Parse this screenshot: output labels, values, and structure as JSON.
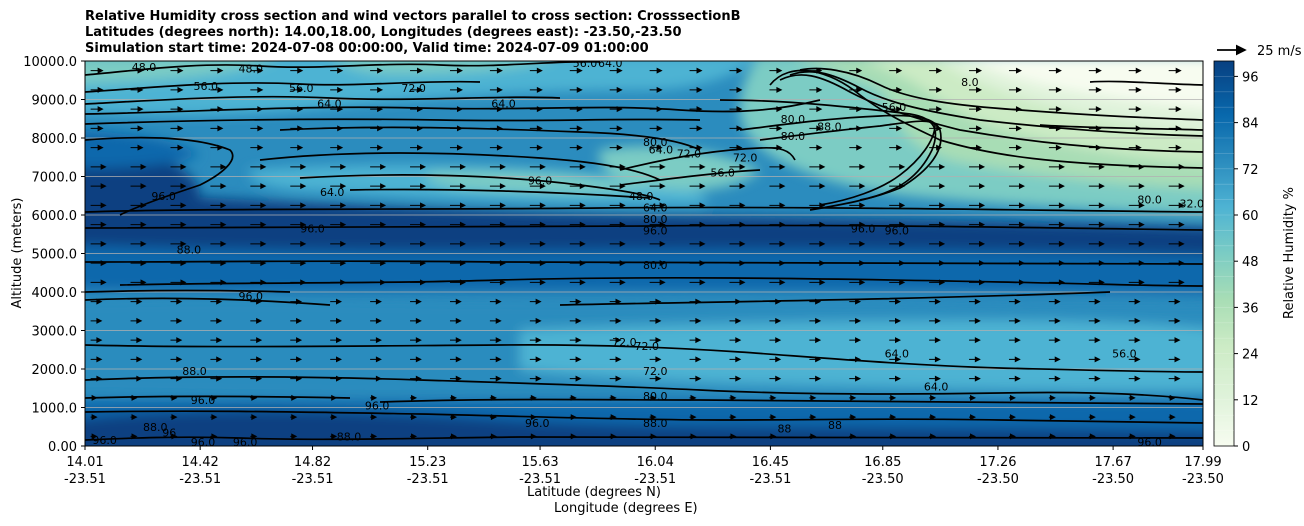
{
  "chart_data": {
    "type": "contour",
    "title_lines": [
      "Relative Humidity cross section and wind vectors parallel to cross section: CrosssectionB",
      "Latitudes (degrees north): 14.00,18.00, Longitudes (degrees east): -23.50,-23.50",
      "Simulation start time: 2024-07-08 00:00:00, Valid time: 2024-07-09 01:00:00"
    ],
    "xlabel_lat": "Latitude (degrees N)",
    "xlabel_lon": "Longitude (degrees E)",
    "ylabel": "Altitude (meters)",
    "x_ticks": [
      {
        "lat": "14.01",
        "lon": "-23.51"
      },
      {
        "lat": "14.42",
        "lon": "-23.51"
      },
      {
        "lat": "14.82",
        "lon": "-23.51"
      },
      {
        "lat": "15.23",
        "lon": "-23.51"
      },
      {
        "lat": "15.63",
        "lon": "-23.51"
      },
      {
        "lat": "16.04",
        "lon": "-23.51"
      },
      {
        "lat": "16.45",
        "lon": "-23.51"
      },
      {
        "lat": "16.85",
        "lon": "-23.50"
      },
      {
        "lat": "17.26",
        "lon": "-23.50"
      },
      {
        "lat": "17.67",
        "lon": "-23.50"
      },
      {
        "lat": "17.99",
        "lon": "-23.50"
      }
    ],
    "xlim": [
      14.01,
      17.99
    ],
    "y_ticks": [
      "0.00",
      "1000.0",
      "2000.0",
      "3000.0",
      "4000.0",
      "5000.0",
      "6000.0",
      "7000.0",
      "8000.0",
      "9000.0",
      "10000.0"
    ],
    "ylim": [
      0,
      10000
    ],
    "grid": "horizontal",
    "colorbar": {
      "label": "Relative Humidity %",
      "ticks": [
        "0",
        "12",
        "24",
        "36",
        "48",
        "60",
        "72",
        "84",
        "96"
      ],
      "range": [
        0,
        100
      ],
      "colormap": "GnBu",
      "levels": 25
    },
    "quiver_key": {
      "label": "25 m/s"
    },
    "contour_labels": [
      {
        "text": "48.0",
        "lat": 14.22,
        "alt": 9850
      },
      {
        "text": "56.0",
        "lat": 14.44,
        "alt": 9350
      },
      {
        "text": "48.0",
        "lat": 14.6,
        "alt": 9800
      },
      {
        "text": "56.0",
        "lat": 14.78,
        "alt": 9300
      },
      {
        "text": "64.0",
        "lat": 14.88,
        "alt": 8900
      },
      {
        "text": "72.0",
        "lat": 15.18,
        "alt": 9300
      },
      {
        "text": "64.0",
        "lat": 15.5,
        "alt": 8900
      },
      {
        "text": "56.0",
        "lat": 15.79,
        "alt": 9950
      },
      {
        "text": "64.0",
        "lat": 15.88,
        "alt": 9950
      },
      {
        "text": "80.0",
        "lat": 16.53,
        "alt": 8500
      },
      {
        "text": "80.0",
        "lat": 16.53,
        "alt": 8050
      },
      {
        "text": "88.0",
        "lat": 16.66,
        "alt": 8300
      },
      {
        "text": "56.0",
        "lat": 16.89,
        "alt": 8800
      },
      {
        "text": "8.0",
        "lat": 17.16,
        "alt": 9450
      },
      {
        "text": "80.0",
        "lat": 16.04,
        "alt": 7900
      },
      {
        "text": "72.0",
        "lat": 16.16,
        "alt": 7600
      },
      {
        "text": "64.0",
        "lat": 16.06,
        "alt": 7700
      },
      {
        "text": "72.0",
        "lat": 16.36,
        "alt": 7500
      },
      {
        "text": "56.0",
        "lat": 16.28,
        "alt": 7100
      },
      {
        "text": "48.0",
        "lat": 15.99,
        "alt": 6500
      },
      {
        "text": "64.0",
        "lat": 16.04,
        "alt": 6200
      },
      {
        "text": "80.0",
        "lat": 16.04,
        "alt": 5900
      },
      {
        "text": "96.0",
        "lat": 16.04,
        "alt": 5600
      },
      {
        "text": "96.0",
        "lat": 14.29,
        "alt": 6500
      },
      {
        "text": "96.0",
        "lat": 14.82,
        "alt": 5650
      },
      {
        "text": "64.0",
        "lat": 14.89,
        "alt": 6600
      },
      {
        "text": "96.0",
        "lat": 15.63,
        "alt": 6900
      },
      {
        "text": "96.0",
        "lat": 16.78,
        "alt": 5650
      },
      {
        "text": "96.0",
        "lat": 16.9,
        "alt": 5600
      },
      {
        "text": "80.0",
        "lat": 17.8,
        "alt": 6400
      },
      {
        "text": "32.0",
        "lat": 17.95,
        "alt": 6300
      },
      {
        "text": "88.0",
        "lat": 14.38,
        "alt": 5100
      },
      {
        "text": "96.0",
        "lat": 14.6,
        "alt": 3900
      },
      {
        "text": "80.0",
        "lat": 16.04,
        "alt": 4700
      },
      {
        "text": "72.0",
        "lat": 15.93,
        "alt": 2700
      },
      {
        "text": "72.0",
        "lat": 16.01,
        "alt": 2600
      },
      {
        "text": "72.0",
        "lat": 16.04,
        "alt": 1950
      },
      {
        "text": "64.0",
        "lat": 16.9,
        "alt": 2400
      },
      {
        "text": "56.0",
        "lat": 17.71,
        "alt": 2400
      },
      {
        "text": "88.0",
        "lat": 14.4,
        "alt": 1950
      },
      {
        "text": "96.0",
        "lat": 14.43,
        "alt": 1200
      },
      {
        "text": "80.0",
        "lat": 16.04,
        "alt": 1300
      },
      {
        "text": "64.0",
        "lat": 17.04,
        "alt": 1550
      },
      {
        "text": "96.0",
        "lat": 15.05,
        "alt": 1050
      },
      {
        "text": "96.0",
        "lat": 15.62,
        "alt": 600
      },
      {
        "text": "88.0",
        "lat": 16.04,
        "alt": 600
      },
      {
        "text": "88.0",
        "lat": 14.26,
        "alt": 500
      },
      {
        "text": "96",
        "lat": 14.31,
        "alt": 350
      },
      {
        "text": "88",
        "lat": 16.5,
        "alt": 450
      },
      {
        "text": "88",
        "lat": 16.68,
        "alt": 550
      },
      {
        "text": "96.0",
        "lat": 14.08,
        "alt": 150
      },
      {
        "text": "96.0",
        "lat": 14.43,
        "alt": 100
      },
      {
        "text": "96.0",
        "lat": 14.58,
        "alt": 100
      },
      {
        "text": "88.0",
        "lat": 14.95,
        "alt": 250
      },
      {
        "text": "96.0",
        "lat": 17.8,
        "alt": 100
      }
    ],
    "wind_direction": "toward +x (northward along section)"
  }
}
